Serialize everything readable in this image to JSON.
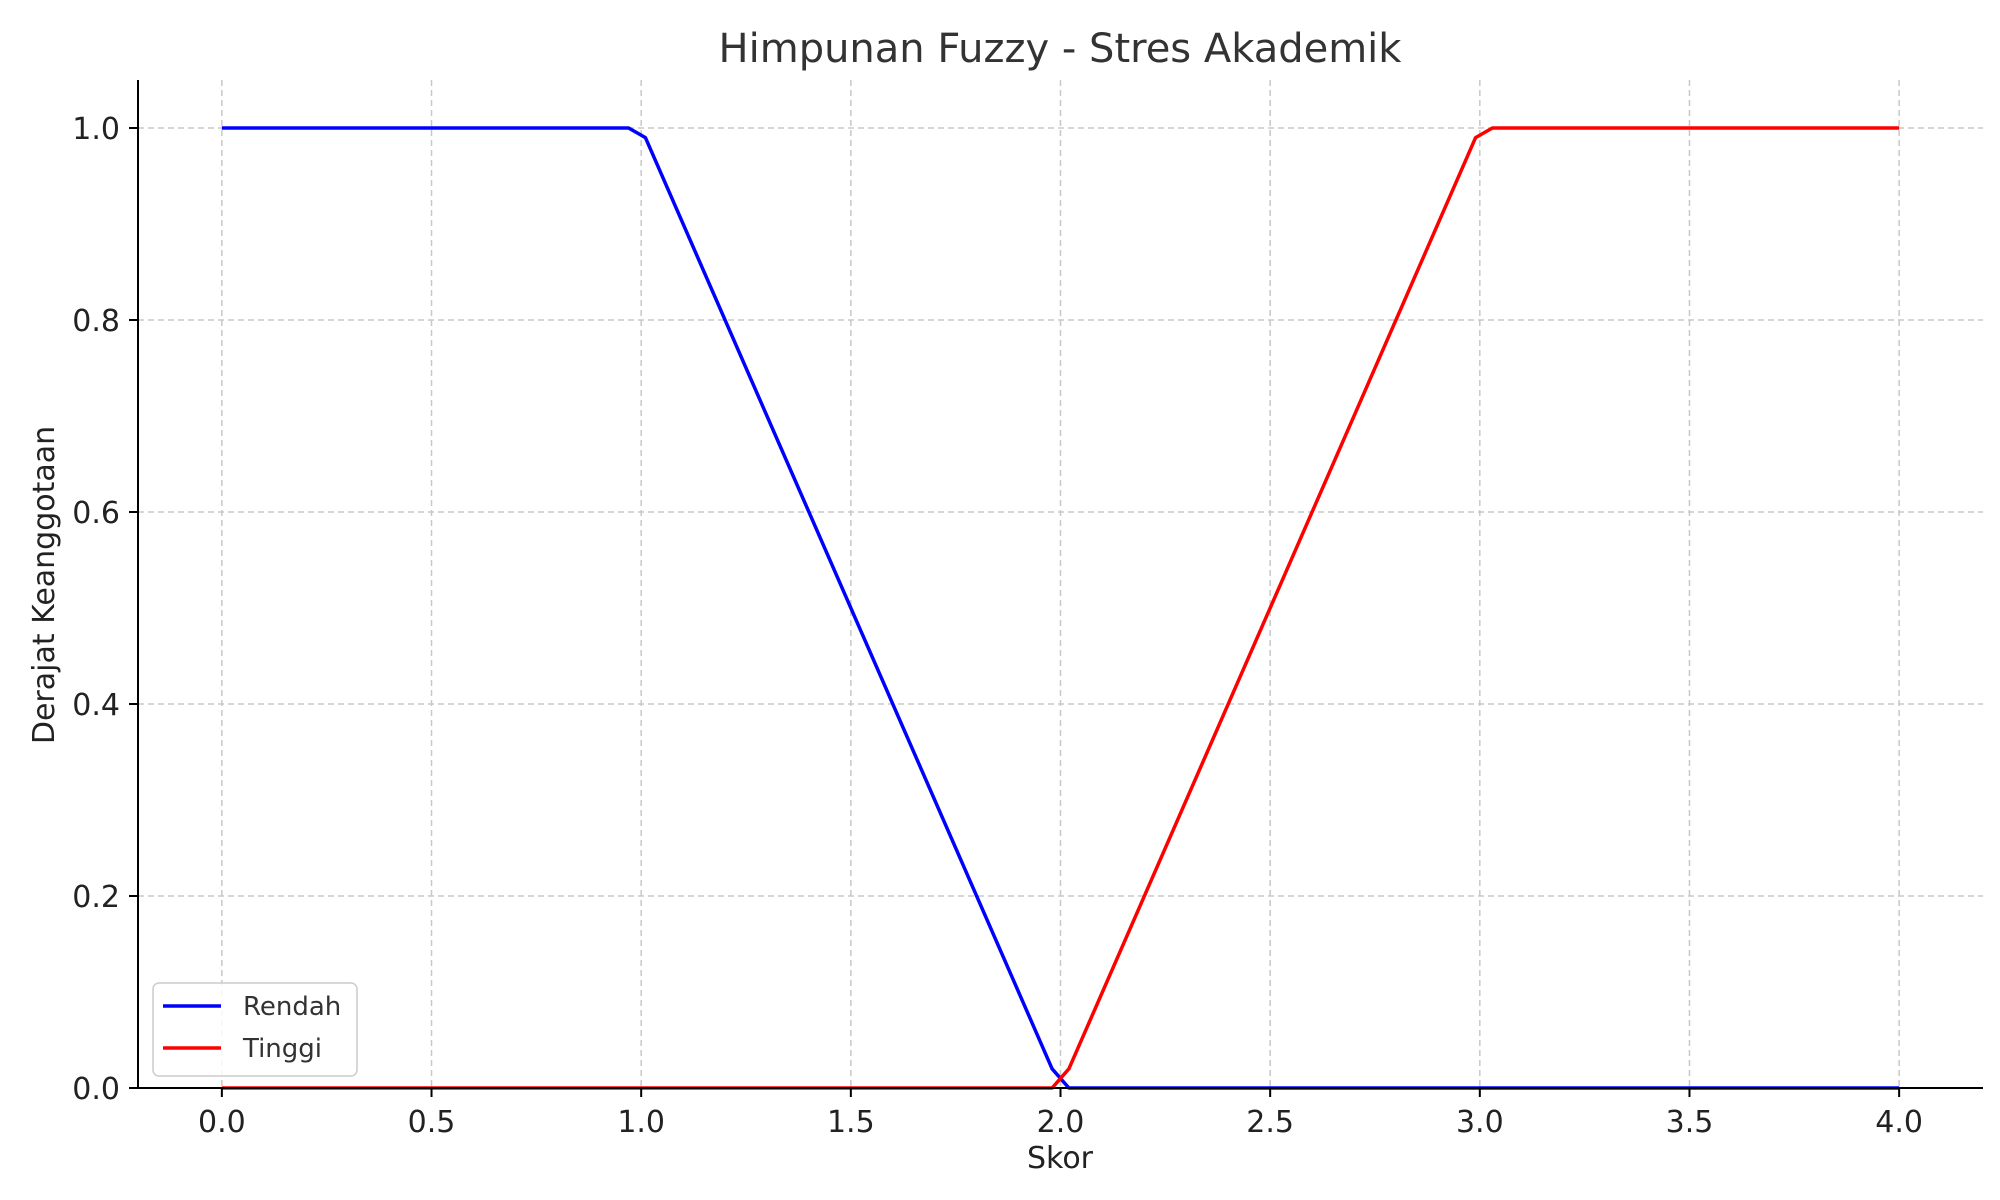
{
  "chart_data": {
    "type": "line",
    "title": "Himpunan Fuzzy - Stres Akademik",
    "xlabel": "Skor",
    "ylabel": "Derajat Keanggotaan",
    "xlim": [
      -0.2,
      4.2
    ],
    "ylim": [
      0,
      1.05
    ],
    "xticks": [
      0.0,
      0.5,
      1.0,
      1.5,
      2.0,
      2.5,
      3.0,
      3.5,
      4.0
    ],
    "xtick_labels": [
      "0.0",
      "0.5",
      "1.0",
      "1.5",
      "2.0",
      "2.5",
      "3.0",
      "3.5",
      "4.0"
    ],
    "yticks": [
      0.0,
      0.2,
      0.4,
      0.6,
      0.8,
      1.0
    ],
    "ytick_labels": [
      "0.0",
      "0.2",
      "0.4",
      "0.6",
      "0.8",
      "1.0"
    ],
    "grid": true,
    "legend_position": "lower-left",
    "series": [
      {
        "name": "Rendah",
        "color": "#0000ff",
        "x": [
          0.0,
          0.97,
          1.01,
          1.98,
          2.02,
          4.0
        ],
        "y": [
          1.0,
          1.0,
          0.99,
          0.02,
          0.0,
          0.0
        ]
      },
      {
        "name": "Tinggi",
        "color": "#ff0000",
        "x": [
          0.0,
          1.98,
          2.02,
          2.99,
          3.03,
          4.0
        ],
        "y": [
          0.0,
          0.0,
          0.02,
          0.99,
          1.0,
          1.0
        ]
      }
    ]
  }
}
